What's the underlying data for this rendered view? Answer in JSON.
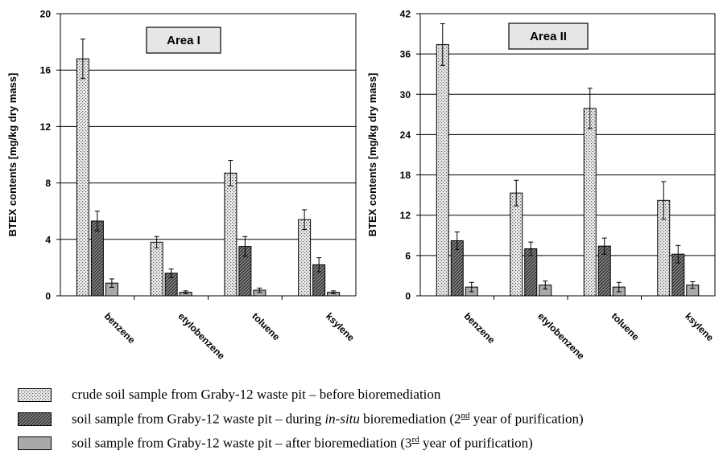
{
  "charts": [
    {
      "area_label": "Area I",
      "ylabel": "BTEX contents [mg/kg dry mass]",
      "yticks": [
        "0",
        "4",
        "8",
        "12",
        "16",
        "20"
      ],
      "categories": [
        "benzene",
        "etylobenzene",
        "toluene",
        "ksylene"
      ]
    },
    {
      "area_label": "Area II",
      "ylabel": "BTEX contents [mg/kg dry mass]",
      "yticks": [
        "0",
        "6",
        "12",
        "18",
        "24",
        "30",
        "36",
        "42"
      ],
      "categories": [
        "benzene",
        "etylobenzene",
        "toluene",
        "ksylene"
      ]
    }
  ],
  "legend": {
    "before": "crude soil sample from Graby-12 waste pit – before bioremediation",
    "during_pre": "soil sample from Graby-12 waste pit – during ",
    "during_italic": "in-situ",
    "during_mid": " bioremediation (2",
    "during_sup": "nd",
    "during_post": " year of purification)",
    "after_pre": "soil sample from Graby-12 waste pit – after bioremediation (3",
    "after_sup": "rd",
    "after_post": " year of purification)"
  },
  "chart_data": [
    {
      "type": "bar",
      "title": "Area I",
      "ylabel": "BTEX contents [mg/kg dry mass]",
      "categories": [
        "benzene",
        "etylobenzene",
        "toluene",
        "ksylene"
      ],
      "ylim": [
        0,
        20
      ],
      "grid": true,
      "series": [
        {
          "values": [
            16.8,
            3.8,
            8.7,
            5.4
          ],
          "errors": [
            1.4,
            0.4,
            0.9,
            0.7
          ],
          "pattern": "dotted"
        },
        {
          "values": [
            5.3,
            1.6,
            3.5,
            2.2
          ],
          "errors": [
            0.7,
            0.3,
            0.7,
            0.5
          ],
          "pattern": "hatched"
        },
        {
          "values": [
            0.9,
            0.25,
            0.4,
            0.25
          ],
          "errors": [
            0.3,
            0.1,
            0.15,
            0.1
          ],
          "pattern": "solid-gray"
        }
      ]
    },
    {
      "type": "bar",
      "title": "Area II",
      "ylabel": "BTEX contents [mg/kg dry mass]",
      "categories": [
        "benzene",
        "etylobenzene",
        "toluene",
        "ksylene"
      ],
      "ylim": [
        0,
        42
      ],
      "grid": true,
      "series": [
        {
          "values": [
            37.4,
            15.3,
            27.9,
            14.2
          ],
          "errors": [
            3.1,
            1.9,
            3.0,
            2.8
          ],
          "pattern": "dotted"
        },
        {
          "values": [
            8.2,
            7.0,
            7.4,
            6.2
          ],
          "errors": [
            1.3,
            1.0,
            1.2,
            1.3
          ],
          "pattern": "hatched"
        },
        {
          "values": [
            1.3,
            1.6,
            1.3,
            1.6
          ],
          "errors": [
            0.7,
            0.6,
            0.7,
            0.5
          ],
          "pattern": "solid-gray"
        }
      ]
    }
  ]
}
